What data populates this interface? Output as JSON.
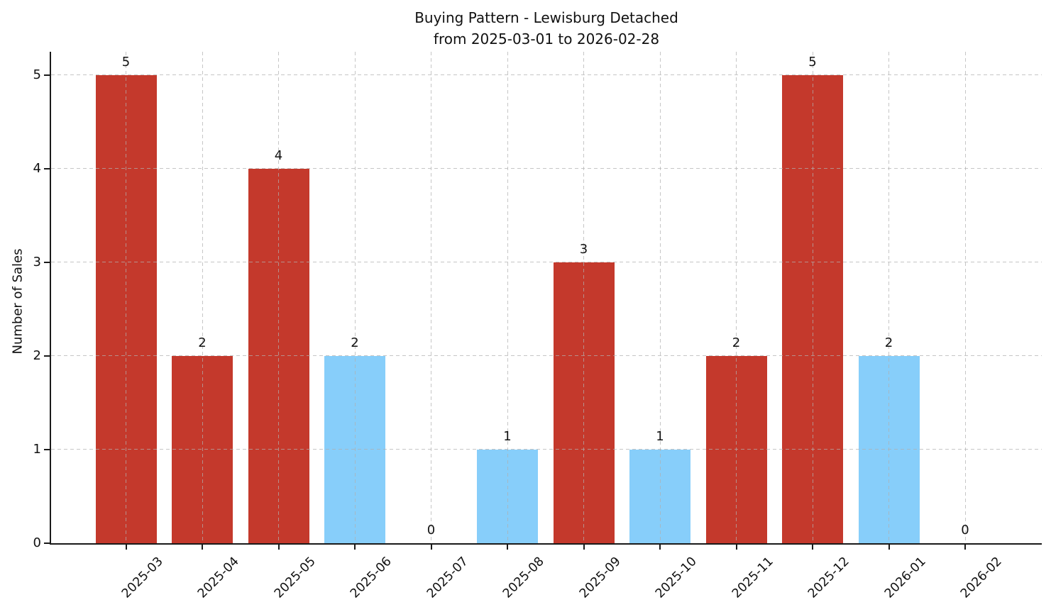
{
  "chart_data": {
    "type": "bar",
    "title": "Buying Pattern - Lewisburg Detached",
    "subtitle": "from 2025-03-01 to 2026-02-28",
    "xlabel": "",
    "ylabel": "Number of Sales",
    "categories": [
      "2025-03",
      "2025-04",
      "2025-05",
      "2025-06",
      "2025-07",
      "2025-08",
      "2025-09",
      "2025-10",
      "2025-11",
      "2025-12",
      "2026-01",
      "2026-02"
    ],
    "values": [
      5,
      2,
      4,
      2,
      0,
      1,
      3,
      1,
      2,
      5,
      2,
      0
    ],
    "value_labels": [
      "5",
      "2",
      "4",
      "2",
      "0",
      "1",
      "3",
      "1",
      "2",
      "5",
      "2",
      "0"
    ],
    "bar_colors": [
      "red",
      "red",
      "red",
      "blue",
      "none",
      "blue",
      "red",
      "blue",
      "red",
      "red",
      "blue",
      "none"
    ],
    "palette": {
      "red": "#c4392c",
      "blue": "#87cefa"
    },
    "yticks": [
      "0",
      "1",
      "2",
      "3",
      "4",
      "5"
    ],
    "ylim": [
      0,
      5.25
    ],
    "grid": "dashed, both axes, drawn above bars",
    "legend": "none",
    "x_tick_rotation_deg": 45
  }
}
